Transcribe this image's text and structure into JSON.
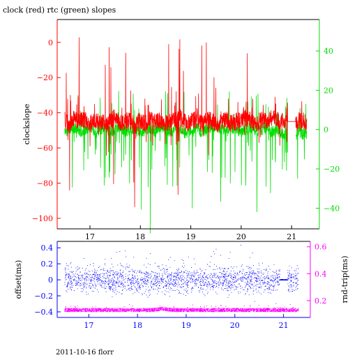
{
  "title": "clock (red) rtc (green) slopes",
  "footer": "2011-10-16 florr",
  "colors": {
    "clock": "#ff0000",
    "rtc": "#00dd00",
    "offset": "#0000ff",
    "roundtrip": "#ff00ff",
    "axis": "#000000"
  },
  "chart_data": [
    {
      "type": "line",
      "title": "clock (red) rtc (green) slopes",
      "ylabel": "clockslope",
      "xlim": [
        16.35,
        21.55
      ],
      "ylim": [
        -106,
        13
      ],
      "y2lim": [
        -50.5,
        56
      ],
      "x_ticks": [
        17,
        18,
        19,
        20,
        21
      ],
      "y_ticks": [
        0,
        -20,
        -40,
        -60,
        -80,
        -100
      ],
      "y2_ticks": [
        40,
        20,
        0,
        -20,
        -40
      ],
      "series": [
        {
          "name": "clock",
          "axis": "left",
          "color": "#ff0000",
          "x": [
            16.5,
            16.6,
            16.7,
            16.8,
            16.9,
            17.0,
            17.1,
            17.2,
            17.3,
            17.4,
            17.5,
            17.6,
            17.7,
            17.8,
            17.9,
            18.0,
            18.1,
            18.2,
            18.3,
            18.4,
            18.5,
            18.6,
            18.7,
            18.8,
            18.9,
            19.0,
            19.1,
            19.2,
            19.3,
            19.4,
            19.5,
            19.6,
            19.7,
            19.8,
            19.9,
            20.0,
            20.1,
            20.2,
            20.3,
            20.4,
            20.5,
            20.6,
            20.7,
            20.8,
            20.9,
            21.0,
            21.1,
            21.2,
            21.3
          ],
          "y": [
            -44,
            -46,
            -43,
            -45,
            -44,
            -46,
            -45,
            -44,
            -47,
            -45,
            -43,
            -46,
            -44,
            -45,
            -47,
            -44,
            -46,
            -43,
            -45,
            -44,
            -46,
            -45,
            -44,
            -43,
            -46,
            -45,
            -44,
            -46,
            -45,
            -44,
            -47,
            -45,
            -44,
            -46,
            -45,
            -44,
            -43,
            -45,
            -46,
            -44,
            -45,
            -43,
            -44,
            -45,
            -46,
            -45,
            -45,
            -44,
            -46
          ]
        },
        {
          "name": "rtc",
          "axis": "right",
          "color": "#00dd00",
          "x": [
            16.5,
            16.6,
            16.7,
            16.8,
            16.9,
            17.0,
            17.1,
            17.2,
            17.3,
            17.4,
            17.5,
            17.6,
            17.7,
            17.8,
            17.9,
            18.0,
            18.1,
            18.2,
            18.3,
            18.4,
            18.5,
            18.6,
            18.7,
            18.8,
            18.9,
            19.0,
            19.1,
            19.2,
            19.3,
            19.4,
            19.5,
            19.6,
            19.7,
            19.8,
            19.9,
            20.0,
            20.1,
            20.2,
            20.3,
            20.4,
            20.5,
            20.6,
            20.7,
            20.8,
            20.9,
            21.0,
            21.1,
            21.2,
            21.3
          ],
          "y": [
            -2,
            0,
            1,
            -1,
            0,
            1,
            -2,
            0,
            1,
            -1,
            0,
            2,
            -1,
            0,
            1,
            -2,
            0,
            1,
            -1,
            2,
            0,
            -1,
            1,
            0,
            -2,
            0,
            1,
            -1,
            0,
            1,
            2,
            0,
            -1,
            1,
            0,
            -1,
            0,
            1,
            -1,
            0,
            1,
            -1,
            0,
            -2,
            -2,
            -3,
            -1,
            -2,
            -2
          ]
        }
      ]
    },
    {
      "type": "scatter",
      "ylabel": "offset(ms)",
      "y2label": "rnd-trip(ms)",
      "xlim": [
        16.35,
        21.55
      ],
      "ylim": [
        -0.47,
        0.48
      ],
      "y2lim": [
        0.075,
        0.64
      ],
      "x_ticks": [
        17,
        18,
        19,
        20,
        21
      ],
      "y_ticks": [
        0.4,
        0.2,
        0,
        -0.2,
        -0.4
      ],
      "y_tick_labels": [
        "0.4",
        "0.2",
        "0",
        "−0.2",
        "−0.4"
      ],
      "y2_ticks": [
        0.6,
        0.4,
        0.2
      ],
      "series": [
        {
          "name": "offset",
          "axis": "left",
          "color": "#0000ff",
          "x": [
            16.5,
            16.7,
            16.9,
            17.1,
            17.3,
            17.5,
            17.7,
            17.9,
            18.1,
            18.3,
            18.5,
            18.7,
            18.9,
            19.1,
            19.3,
            19.5,
            19.7,
            19.9,
            20.1,
            20.3,
            20.5,
            20.7,
            20.9,
            21.1,
            21.3
          ],
          "y": [
            0.02,
            0.0,
            -0.01,
            0.01,
            0.0,
            -0.02,
            0.01,
            0.0,
            0.02,
            -0.01,
            0.0,
            0.01,
            0.0,
            -0.01,
            0.01,
            0.0,
            0.02,
            -0.01,
            0.0,
            0.01,
            -0.01,
            0.0,
            0.0,
            0.0,
            0.0
          ]
        },
        {
          "name": "rnd-trip",
          "axis": "right",
          "color": "#ff00ff",
          "x": [
            16.5,
            16.7,
            16.9,
            17.1,
            17.3,
            17.5,
            17.7,
            17.9,
            18.1,
            18.3,
            18.5,
            18.7,
            18.9,
            19.1,
            19.3,
            19.5,
            19.7,
            19.9,
            20.1,
            20.3,
            20.5,
            20.7,
            20.9,
            21.1,
            21.3
          ],
          "y": [
            0.13,
            0.13,
            0.13,
            0.13,
            0.13,
            0.13,
            0.13,
            0.13,
            0.13,
            0.13,
            0.14,
            0.13,
            0.13,
            0.13,
            0.13,
            0.13,
            0.13,
            0.13,
            0.13,
            0.13,
            0.13,
            0.13,
            0.13,
            0.13,
            0.13
          ]
        }
      ]
    }
  ]
}
